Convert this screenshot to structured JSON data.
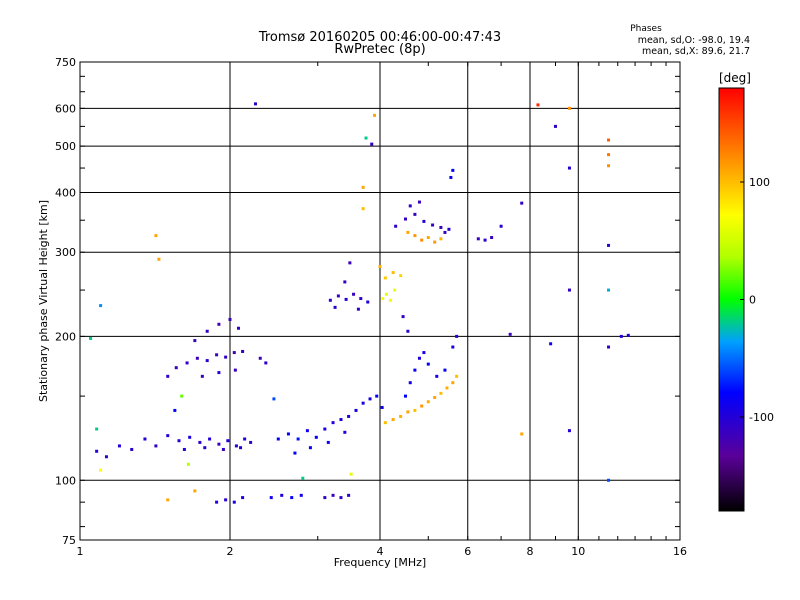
{
  "chart_data": {
    "type": "scatter",
    "title": "Tromsø 20160205 00:46:00-00:47:43",
    "subtitle": "RwPretec (8p)",
    "xlabel": "Frequency [MHz]",
    "ylabel": "Stationary phase Virtual Height [km]",
    "x_scale": "log",
    "y_scale": "log",
    "xlim": [
      1,
      16
    ],
    "ylim": [
      75,
      750
    ],
    "x_ticks": [
      1,
      2,
      4,
      6,
      8,
      10,
      16
    ],
    "x_tick_labels": [
      "1",
      "2",
      "4",
      "6",
      "8",
      "10",
      "16"
    ],
    "y_ticks": [
      75,
      100,
      200,
      300,
      400,
      500,
      600,
      750
    ],
    "y_tick_labels": [
      "75",
      "100",
      "200",
      "300",
      "400",
      "500",
      "600",
      "750"
    ],
    "grid": true,
    "phases": {
      "heading": "Phases",
      "o_line": "mean, sd,O: -98.0, 19.4",
      "x_line": "mean, sd,X:  89.6, 21.7"
    },
    "colorbar": {
      "label": "[deg]",
      "range": [
        -180,
        180
      ],
      "ticks": [
        100,
        0,
        -100
      ],
      "tick_labels": [
        "100",
        "0",
        "-100"
      ]
    },
    "series": [
      {
        "values": [
          {
            "x": 1.08,
            "y": 115,
            "p": -100
          },
          {
            "x": 1.13,
            "y": 112,
            "p": -110
          },
          {
            "x": 1.2,
            "y": 118,
            "p": -100
          },
          {
            "x": 1.27,
            "y": 116,
            "p": -105
          },
          {
            "x": 1.35,
            "y": 122,
            "p": -100
          },
          {
            "x": 1.42,
            "y": 118,
            "p": -110
          },
          {
            "x": 1.5,
            "y": 124,
            "p": -100
          },
          {
            "x": 1.58,
            "y": 121,
            "p": -105
          },
          {
            "x": 1.66,
            "y": 123,
            "p": -95
          },
          {
            "x": 1.74,
            "y": 120,
            "p": -110
          },
          {
            "x": 1.82,
            "y": 122,
            "p": -100
          },
          {
            "x": 1.9,
            "y": 119,
            "p": -115
          },
          {
            "x": 1.98,
            "y": 121,
            "p": -100
          },
          {
            "x": 2.06,
            "y": 118,
            "p": -105
          },
          {
            "x": 2.14,
            "y": 122,
            "p": -95
          },
          {
            "x": 2.2,
            "y": 120,
            "p": -110
          },
          {
            "x": 1.62,
            "y": 116,
            "p": -100
          },
          {
            "x": 1.78,
            "y": 117,
            "p": -105
          },
          {
            "x": 1.94,
            "y": 116,
            "p": -110
          },
          {
            "x": 2.1,
            "y": 117,
            "p": -100
          },
          {
            "x": 1.56,
            "y": 172,
            "p": -115
          },
          {
            "x": 1.64,
            "y": 176,
            "p": -110
          },
          {
            "x": 1.72,
            "y": 180,
            "p": -115
          },
          {
            "x": 1.8,
            "y": 178,
            "p": -105
          },
          {
            "x": 1.88,
            "y": 183,
            "p": -115
          },
          {
            "x": 1.96,
            "y": 181,
            "p": -110
          },
          {
            "x": 2.04,
            "y": 185,
            "p": -120
          },
          {
            "x": 2.12,
            "y": 186,
            "p": -110
          },
          {
            "x": 1.7,
            "y": 196,
            "p": -115
          },
          {
            "x": 1.8,
            "y": 205,
            "p": -110
          },
          {
            "x": 1.9,
            "y": 212,
            "p": -120
          },
          {
            "x": 2.0,
            "y": 217,
            "p": -115
          },
          {
            "x": 2.08,
            "y": 208,
            "p": -110
          },
          {
            "x": 1.76,
            "y": 165,
            "p": -115
          },
          {
            "x": 1.9,
            "y": 168,
            "p": -105
          },
          {
            "x": 2.05,
            "y": 170,
            "p": -115
          },
          {
            "x": 2.3,
            "y": 180,
            "p": -115
          },
          {
            "x": 2.36,
            "y": 176,
            "p": -110
          },
          {
            "x": 2.5,
            "y": 122,
            "p": -80
          },
          {
            "x": 2.62,
            "y": 125,
            "p": -85
          },
          {
            "x": 2.74,
            "y": 122,
            "p": -75
          },
          {
            "x": 2.86,
            "y": 127,
            "p": -90
          },
          {
            "x": 2.98,
            "y": 123,
            "p": -80
          },
          {
            "x": 3.1,
            "y": 128,
            "p": -95
          },
          {
            "x": 3.22,
            "y": 132,
            "p": -100
          },
          {
            "x": 3.34,
            "y": 134,
            "p": -95
          },
          {
            "x": 3.46,
            "y": 136,
            "p": -100
          },
          {
            "x": 3.58,
            "y": 140,
            "p": -95
          },
          {
            "x": 3.7,
            "y": 145,
            "p": -90
          },
          {
            "x": 3.82,
            "y": 148,
            "p": -95
          },
          {
            "x": 3.94,
            "y": 150,
            "p": -85
          },
          {
            "x": 4.04,
            "y": 142,
            "p": -90
          },
          {
            "x": 2.7,
            "y": 114,
            "p": -80
          },
          {
            "x": 2.9,
            "y": 117,
            "p": -85
          },
          {
            "x": 3.15,
            "y": 120,
            "p": -90
          },
          {
            "x": 3.4,
            "y": 126,
            "p": -95
          },
          {
            "x": 1.88,
            "y": 90,
            "p": -100
          },
          {
            "x": 1.96,
            "y": 91,
            "p": -105
          },
          {
            "x": 2.04,
            "y": 90,
            "p": -95
          },
          {
            "x": 2.12,
            "y": 92,
            "p": -100
          },
          {
            "x": 2.42,
            "y": 92,
            "p": -90
          },
          {
            "x": 2.54,
            "y": 93,
            "p": -95
          },
          {
            "x": 2.66,
            "y": 92,
            "p": -85
          },
          {
            "x": 2.78,
            "y": 93,
            "p": -90
          },
          {
            "x": 3.1,
            "y": 92,
            "p": -110
          },
          {
            "x": 3.22,
            "y": 93,
            "p": -115
          },
          {
            "x": 3.34,
            "y": 92,
            "p": -110
          },
          {
            "x": 3.46,
            "y": 93,
            "p": -105
          },
          {
            "x": 3.18,
            "y": 238,
            "p": -110
          },
          {
            "x": 3.3,
            "y": 243,
            "p": -115
          },
          {
            "x": 3.42,
            "y": 239,
            "p": -105
          },
          {
            "x": 3.54,
            "y": 245,
            "p": -115
          },
          {
            "x": 3.66,
            "y": 240,
            "p": -110
          },
          {
            "x": 3.78,
            "y": 236,
            "p": -100
          },
          {
            "x": 3.4,
            "y": 260,
            "p": -110
          },
          {
            "x": 3.48,
            "y": 285,
            "p": -115
          },
          {
            "x": 3.25,
            "y": 230,
            "p": -105
          },
          {
            "x": 3.62,
            "y": 228,
            "p": -110
          },
          {
            "x": 4.05,
            "y": 240,
            "p": 70
          },
          {
            "x": 4.12,
            "y": 245,
            "p": 60
          },
          {
            "x": 4.2,
            "y": 238,
            "p": 75
          },
          {
            "x": 4.28,
            "y": 250,
            "p": 65
          },
          {
            "x": 4.1,
            "y": 265,
            "p": 95
          },
          {
            "x": 4.25,
            "y": 272,
            "p": 100
          },
          {
            "x": 4.4,
            "y": 268,
            "p": 90
          },
          {
            "x": 4.0,
            "y": 280,
            "p": 105
          },
          {
            "x": 4.55,
            "y": 330,
            "p": 110
          },
          {
            "x": 4.7,
            "y": 325,
            "p": 115
          },
          {
            "x": 4.85,
            "y": 318,
            "p": 120
          },
          {
            "x": 5.0,
            "y": 322,
            "p": 110
          },
          {
            "x": 5.15,
            "y": 315,
            "p": 115
          },
          {
            "x": 5.3,
            "y": 320,
            "p": 105
          },
          {
            "x": 4.3,
            "y": 340,
            "p": -110
          },
          {
            "x": 4.5,
            "y": 352,
            "p": -115
          },
          {
            "x": 4.7,
            "y": 360,
            "p": -110
          },
          {
            "x": 4.9,
            "y": 348,
            "p": -105
          },
          {
            "x": 5.1,
            "y": 342,
            "p": -110
          },
          {
            "x": 5.3,
            "y": 338,
            "p": -115
          },
          {
            "x": 5.5,
            "y": 335,
            "p": -100
          },
          {
            "x": 5.4,
            "y": 330,
            "p": -110
          },
          {
            "x": 4.6,
            "y": 375,
            "p": -110
          },
          {
            "x": 4.8,
            "y": 382,
            "p": -115
          },
          {
            "x": 5.6,
            "y": 445,
            "p": -80
          },
          {
            "x": 5.55,
            "y": 430,
            "p": -85
          },
          {
            "x": 4.1,
            "y": 132,
            "p": 100
          },
          {
            "x": 4.25,
            "y": 134,
            "p": 110
          },
          {
            "x": 4.4,
            "y": 136,
            "p": 105
          },
          {
            "x": 4.55,
            "y": 139,
            "p": 110
          },
          {
            "x": 4.7,
            "y": 140,
            "p": 100
          },
          {
            "x": 4.85,
            "y": 143,
            "p": 115
          },
          {
            "x": 5.0,
            "y": 146,
            "p": 105
          },
          {
            "x": 5.15,
            "y": 149,
            "p": 110
          },
          {
            "x": 5.3,
            "y": 152,
            "p": 100
          },
          {
            "x": 5.45,
            "y": 156,
            "p": 105
          },
          {
            "x": 5.6,
            "y": 160,
            "p": 110
          },
          {
            "x": 5.7,
            "y": 165,
            "p": 100
          },
          {
            "x": 4.5,
            "y": 150,
            "p": -80
          },
          {
            "x": 4.6,
            "y": 160,
            "p": -90
          },
          {
            "x": 4.7,
            "y": 170,
            "p": -85
          },
          {
            "x": 4.8,
            "y": 180,
            "p": -100
          },
          {
            "x": 4.9,
            "y": 185,
            "p": -95
          },
          {
            "x": 5.0,
            "y": 175,
            "p": -85
          },
          {
            "x": 5.2,
            "y": 165,
            "p": -90
          },
          {
            "x": 5.4,
            "y": 170,
            "p": -80
          },
          {
            "x": 5.6,
            "y": 190,
            "p": -95
          },
          {
            "x": 5.7,
            "y": 200,
            "p": -100
          },
          {
            "x": 4.55,
            "y": 205,
            "p": -105
          },
          {
            "x": 4.45,
            "y": 220,
            "p": -110
          },
          {
            "x": 6.3,
            "y": 320,
            "p": -110
          },
          {
            "x": 6.5,
            "y": 318,
            "p": -105
          },
          {
            "x": 6.7,
            "y": 322,
            "p": -115
          },
          {
            "x": 7.0,
            "y": 340,
            "p": -100
          },
          {
            "x": 7.7,
            "y": 380,
            "p": -110
          },
          {
            "x": 9.0,
            "y": 550,
            "p": -110
          },
          {
            "x": 9.6,
            "y": 450,
            "p": -105
          },
          {
            "x": 9.6,
            "y": 250,
            "p": -110
          },
          {
            "x": 11.5,
            "y": 310,
            "p": -105
          },
          {
            "x": 11.5,
            "y": 190,
            "p": -110
          },
          {
            "x": 12.2,
            "y": 200,
            "p": -100
          },
          {
            "x": 12.6,
            "y": 201,
            "p": -95
          },
          {
            "x": 2.25,
            "y": 613,
            "p": -110
          },
          {
            "x": 3.85,
            "y": 505,
            "p": -110
          },
          {
            "x": 3.75,
            "y": 520,
            "p": -20
          },
          {
            "x": 7.3,
            "y": 202,
            "p": -115
          },
          {
            "x": 1.05,
            "y": 198,
            "p": -20
          },
          {
            "x": 1.1,
            "y": 232,
            "p": -40
          },
          {
            "x": 1.08,
            "y": 128,
            "p": -20
          },
          {
            "x": 1.42,
            "y": 325,
            "p": 110
          },
          {
            "x": 1.44,
            "y": 290,
            "p": 110
          },
          {
            "x": 1.5,
            "y": 165,
            "p": -110
          },
          {
            "x": 1.55,
            "y": 140,
            "p": -80
          },
          {
            "x": 8.3,
            "y": 610,
            "p": 165
          },
          {
            "x": 9.6,
            "y": 600,
            "p": 120
          },
          {
            "x": 11.5,
            "y": 515,
            "p": 140
          },
          {
            "x": 11.5,
            "y": 480,
            "p": 130
          },
          {
            "x": 11.5,
            "y": 455,
            "p": 120
          },
          {
            "x": 11.5,
            "y": 250,
            "p": -30
          },
          {
            "x": 11.5,
            "y": 100,
            "p": -60
          },
          {
            "x": 9.6,
            "y": 127,
            "p": -100
          },
          {
            "x": 7.7,
            "y": 125,
            "p": 110
          },
          {
            "x": 3.7,
            "y": 410,
            "p": 110
          },
          {
            "x": 3.7,
            "y": 370,
            "p": 100
          },
          {
            "x": 3.9,
            "y": 580,
            "p": 110
          },
          {
            "x": 8.8,
            "y": 193,
            "p": -90
          },
          {
            "x": 1.5,
            "y": 91,
            "p": 110
          },
          {
            "x": 1.7,
            "y": 95,
            "p": 110
          },
          {
            "x": 2.8,
            "y": 101,
            "p": -20
          },
          {
            "x": 3.5,
            "y": 103,
            "p": 60
          },
          {
            "x": 1.65,
            "y": 108,
            "p": 40
          },
          {
            "x": 1.1,
            "y": 105,
            "p": 70
          },
          {
            "x": 1.6,
            "y": 150,
            "p": 20
          },
          {
            "x": 2.45,
            "y": 148,
            "p": -60
          }
        ]
      }
    ]
  }
}
